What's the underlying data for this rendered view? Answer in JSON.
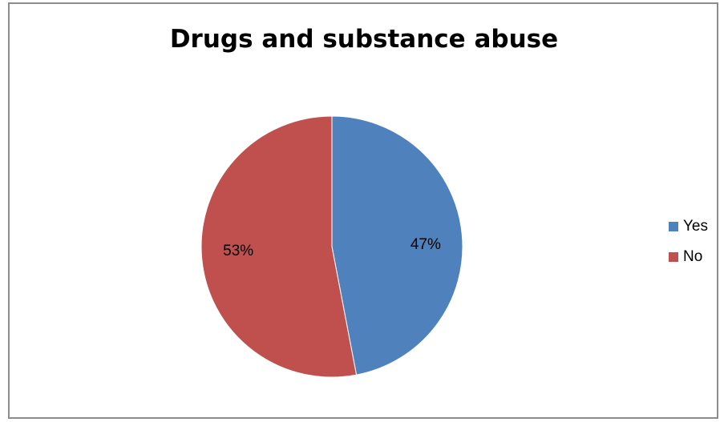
{
  "chart_data": {
    "type": "pie",
    "title": "Drugs and substance abuse",
    "categories": [
      "Yes",
      "No"
    ],
    "values": [
      47,
      53
    ],
    "labels": [
      "47%",
      "53%"
    ],
    "colors": [
      "#4f81bd",
      "#c0504d"
    ],
    "legend": "right"
  }
}
